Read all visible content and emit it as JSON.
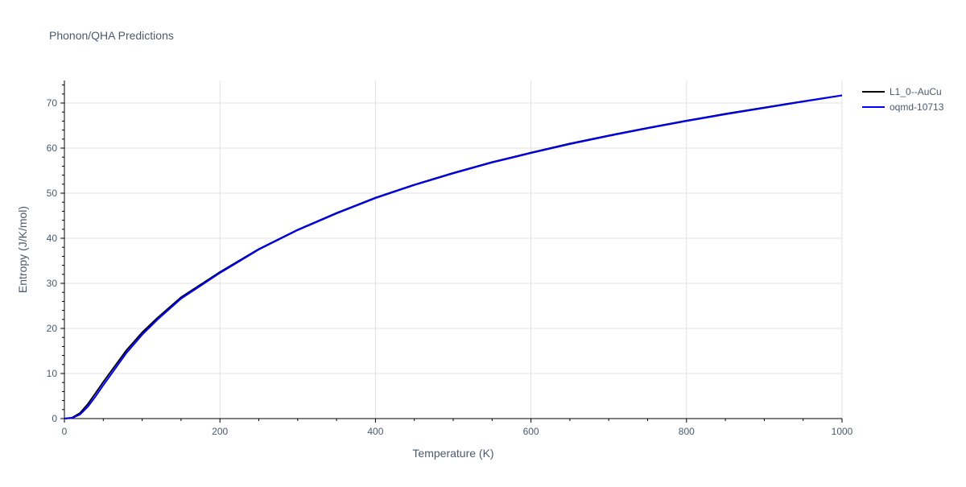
{
  "chart_data": {
    "type": "line",
    "title": "Phonon/QHA Predictions",
    "xlabel": "Temperature (K)",
    "ylabel": "Entropy (J/K/mol)",
    "xlim": [
      0,
      1000
    ],
    "ylim": [
      0,
      75
    ],
    "x_ticks": [
      0,
      200,
      400,
      600,
      800,
      1000
    ],
    "y_ticks": [
      0,
      10,
      20,
      30,
      40,
      50,
      60,
      70
    ],
    "grid": true,
    "legend_position": "top-right",
    "series": [
      {
        "name": "L1_0--AuCu",
        "color": "#000000",
        "x": [
          0,
          10,
          20,
          30,
          40,
          50,
          60,
          80,
          100,
          120,
          150,
          200,
          250,
          300,
          350,
          400,
          450,
          500,
          550,
          600,
          650,
          700,
          750,
          800,
          850,
          900,
          950,
          1000
        ],
        "y": [
          0,
          0.2,
          1.2,
          3.2,
          5.6,
          8.1,
          10.5,
          15.2,
          19.1,
          22.4,
          26.9,
          32.5,
          37.6,
          41.9,
          45.6,
          49.0,
          51.9,
          54.5,
          56.9,
          59.0,
          61.0,
          62.8,
          64.5,
          66.1,
          67.6,
          69.0,
          70.4,
          71.7
        ]
      },
      {
        "name": "oqmd-10713",
        "color": "#0000ff",
        "x": [
          0,
          10,
          20,
          30,
          40,
          50,
          60,
          80,
          100,
          120,
          150,
          200,
          250,
          300,
          350,
          400,
          450,
          500,
          550,
          600,
          650,
          700,
          750,
          800,
          850,
          900,
          950,
          1000
        ],
        "y": [
          0,
          0.1,
          0.9,
          2.6,
          4.9,
          7.4,
          9.8,
          14.6,
          18.6,
          22.0,
          26.6,
          32.3,
          37.5,
          41.8,
          45.5,
          48.9,
          51.8,
          54.4,
          56.8,
          58.9,
          60.9,
          62.7,
          64.4,
          66.0,
          67.5,
          68.9,
          70.3,
          71.7
        ]
      }
    ]
  }
}
